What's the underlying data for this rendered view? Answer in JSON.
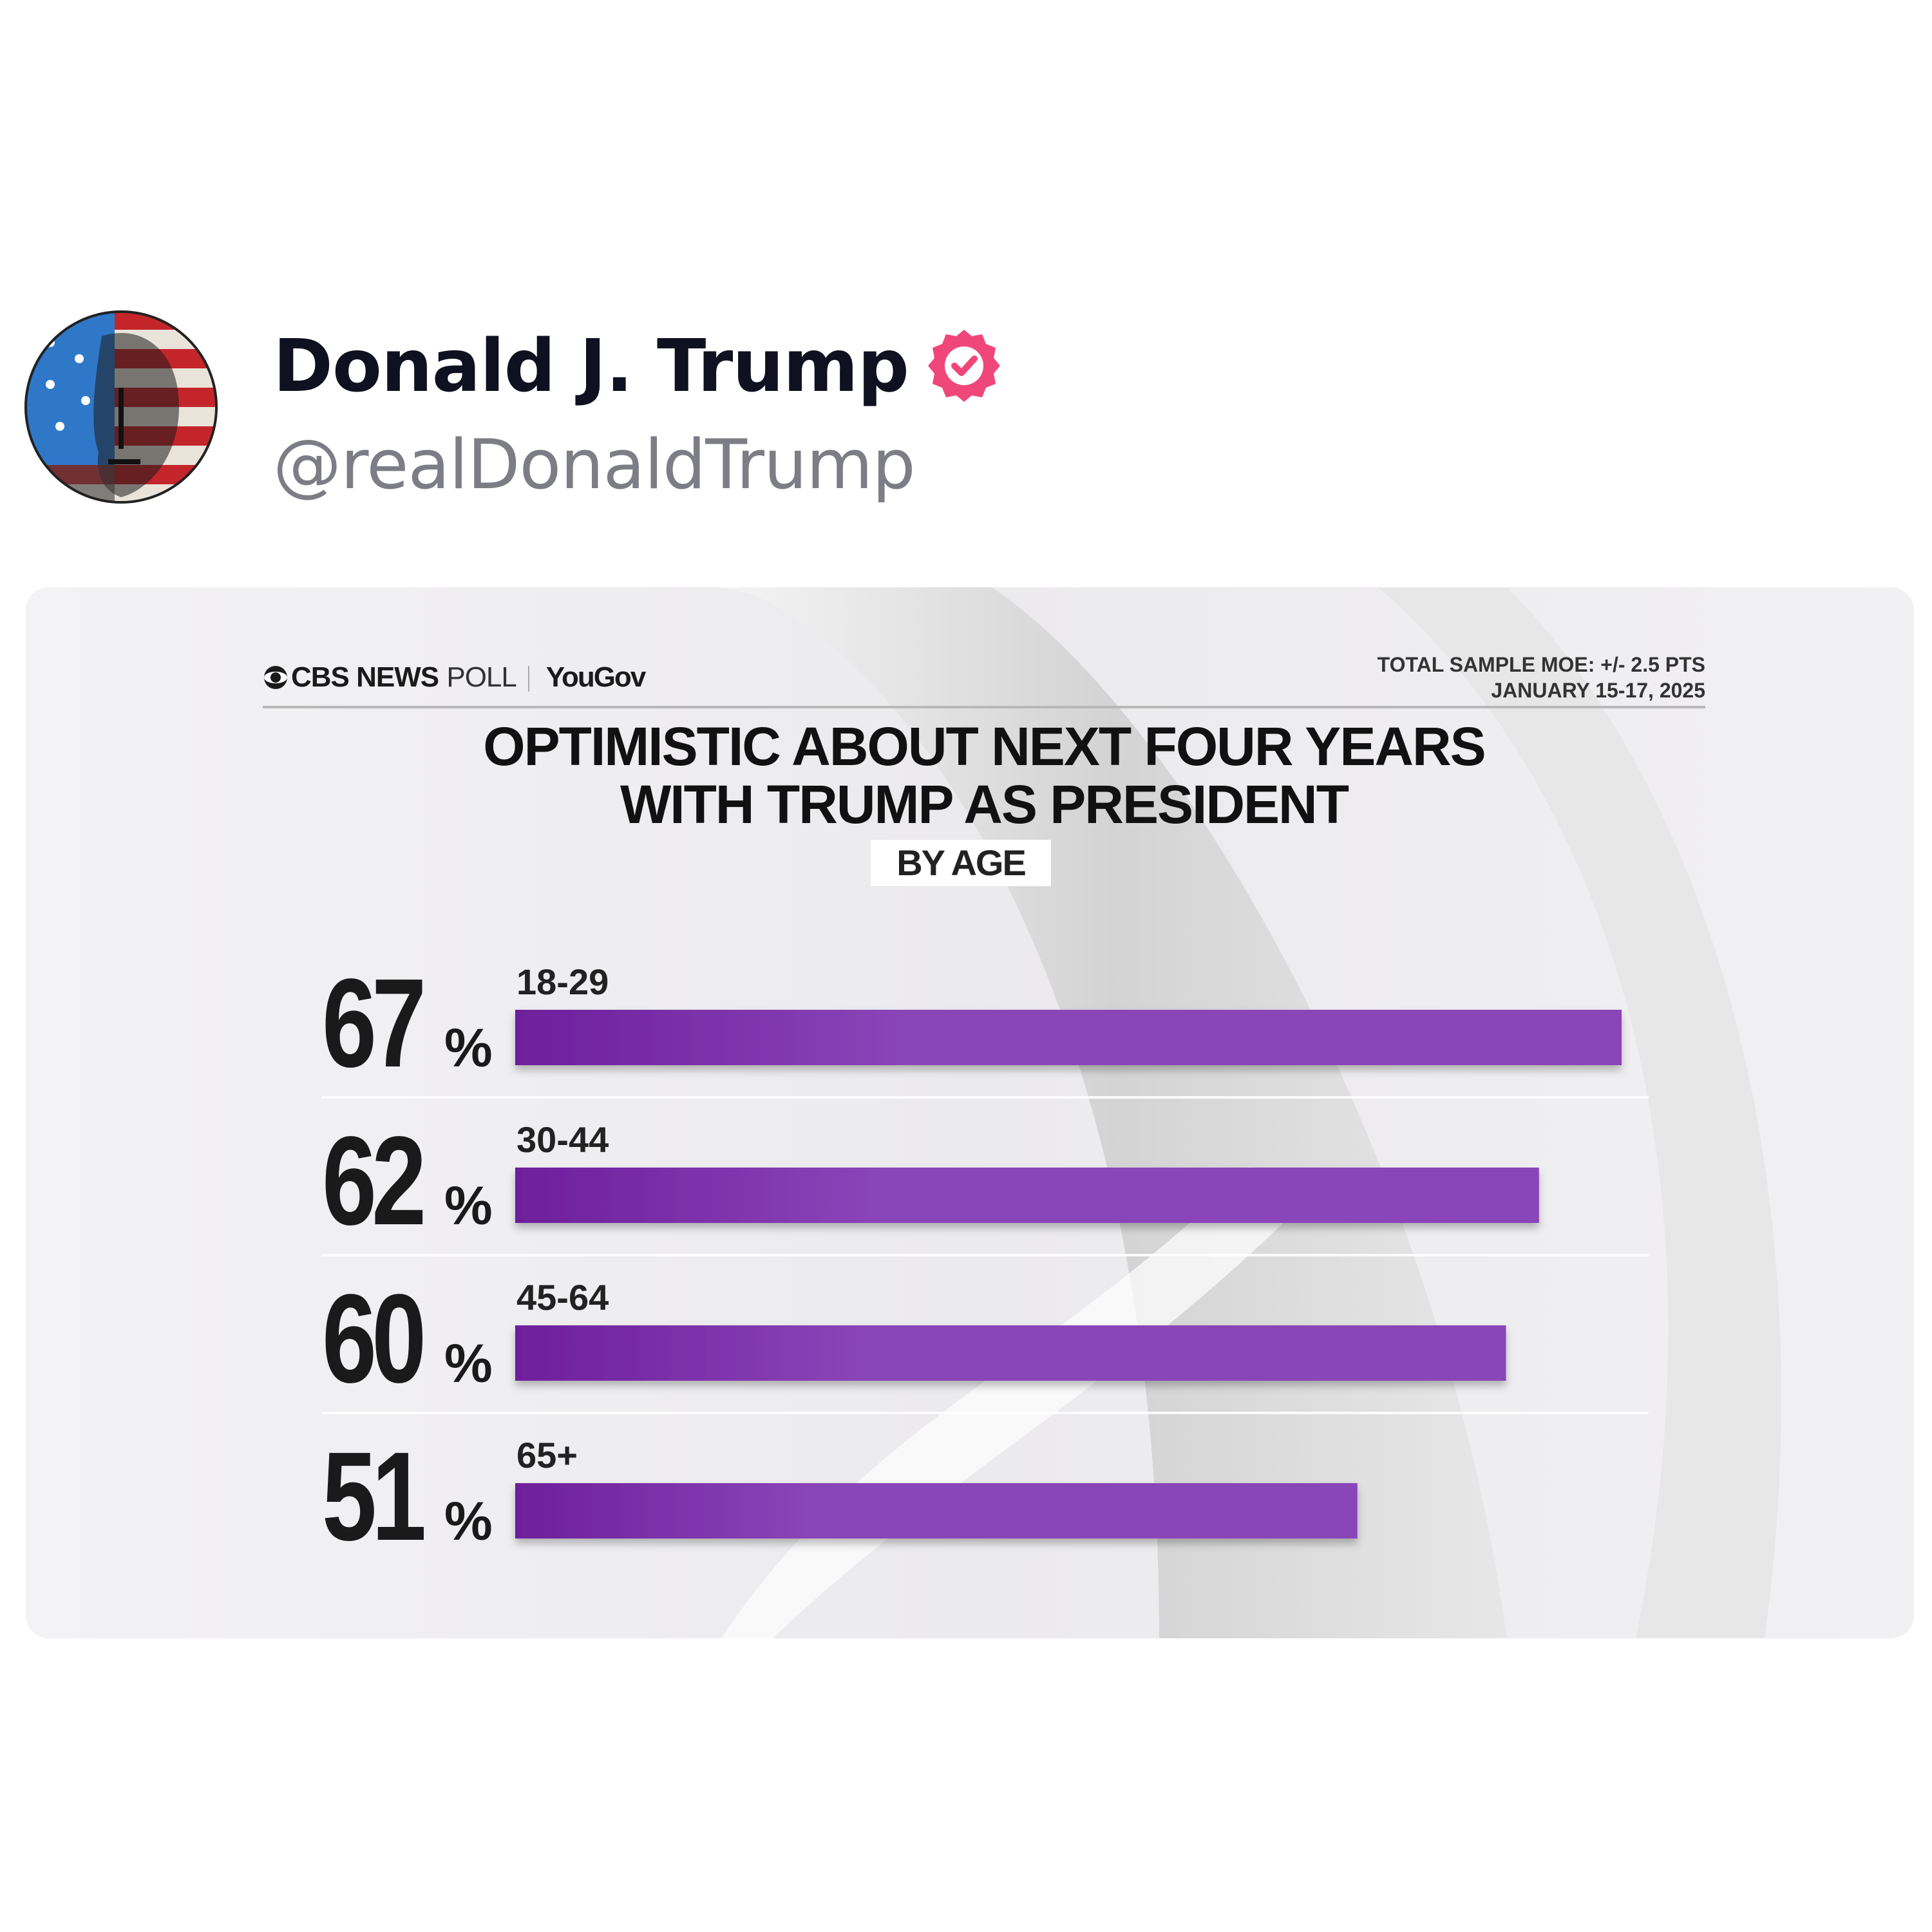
{
  "post": {
    "display_name": "Donald J. Trump",
    "handle": "@realDonaldTrump",
    "verified": true,
    "badge_color": "#f0477b"
  },
  "graphic": {
    "brand_primary": "CBS NEWS",
    "brand_secondary": "POLL",
    "partner": "YouGov",
    "moe_line1": "TOTAL SAMPLE MOE: +/- 2.5 PTS",
    "moe_line2": "JANUARY 15-17, 2025",
    "subtitle": "BY AGE"
  },
  "chart_data": {
    "type": "bar",
    "orientation": "horizontal",
    "title_lines": [
      "OPTIMISTIC ABOUT NEXT FOUR YEARS",
      "WITH TRUMP AS PRESIDENT"
    ],
    "subtitle": "BY AGE",
    "categories": [
      "18-29",
      "30-44",
      "45-64",
      "65+"
    ],
    "values": [
      67,
      62,
      60,
      51
    ],
    "value_suffix": "%",
    "value_labels": [
      "67",
      "62",
      "60",
      "51"
    ],
    "xlim": [
      0,
      67
    ],
    "bar_color": "#8a44b8",
    "bar_color_dark": "#6e1f9c"
  }
}
